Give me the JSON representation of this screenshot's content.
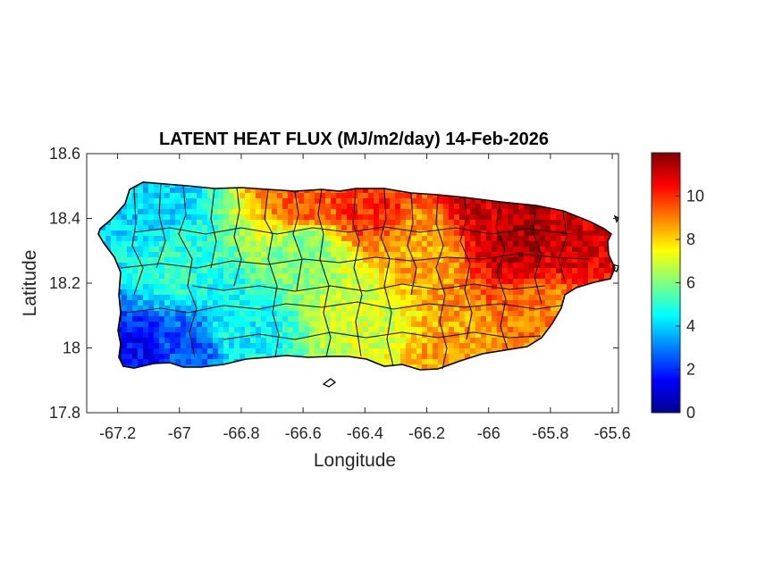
{
  "chart_data": {
    "type": "heatmap",
    "title": "LATENT HEAT FLUX (MJ/m2/day) 14-Feb-2026",
    "xlabel": "Longitude",
    "ylabel": "Latitude",
    "xlim": [
      -67.3,
      -65.58
    ],
    "ylim": [
      17.8,
      18.6
    ],
    "x_ticks": [
      -67.2,
      -67,
      -66.8,
      -66.6,
      -66.4,
      -66.2,
      -66,
      -65.8,
      -65.6
    ],
    "x_tick_labels": [
      "-67.2",
      "-67",
      "-66.8",
      "-66.6",
      "-66.4",
      "-66.2",
      "-66",
      "-65.8",
      "-65.6"
    ],
    "y_ticks": [
      17.8,
      18,
      18.2,
      18.4,
      18.6
    ],
    "y_tick_labels": [
      "17.8",
      "18",
      "18.2",
      "18.4",
      "18.6"
    ],
    "colorbar": {
      "colormap": "jet",
      "range": [
        0,
        12
      ],
      "ticks": [
        0,
        2,
        4,
        6,
        8,
        10
      ],
      "tick_labels": [
        "0",
        "2",
        "4",
        "6",
        "8",
        "10"
      ]
    },
    "field_samples": [
      {
        "lon": -67.15,
        "lat": 17.97,
        "value": 1.5
      },
      {
        "lon": -66.98,
        "lat": 17.99,
        "value": 2.5
      },
      {
        "lon": -67.1,
        "lat": 18.45,
        "value": 4.0
      },
      {
        "lon": -67.0,
        "lat": 18.25,
        "value": 5.0
      },
      {
        "lon": -66.8,
        "lat": 18.05,
        "value": 4.5
      },
      {
        "lon": -66.6,
        "lat": 18.3,
        "value": 6.0
      },
      {
        "lon": -66.6,
        "lat": 18.45,
        "value": 9.5
      },
      {
        "lon": -66.4,
        "lat": 18.45,
        "value": 10.0
      },
      {
        "lon": -66.4,
        "lat": 18.1,
        "value": 7.0
      },
      {
        "lon": -66.2,
        "lat": 18.3,
        "value": 8.5
      },
      {
        "lon": -66.1,
        "lat": 17.98,
        "value": 8.5
      },
      {
        "lon": -66.0,
        "lat": 18.42,
        "value": 11.0
      },
      {
        "lon": -65.9,
        "lat": 18.36,
        "value": 11.5
      },
      {
        "lon": -65.75,
        "lat": 18.35,
        "value": 11.0
      },
      {
        "lon": -65.8,
        "lat": 18.1,
        "value": 9.0
      }
    ]
  }
}
